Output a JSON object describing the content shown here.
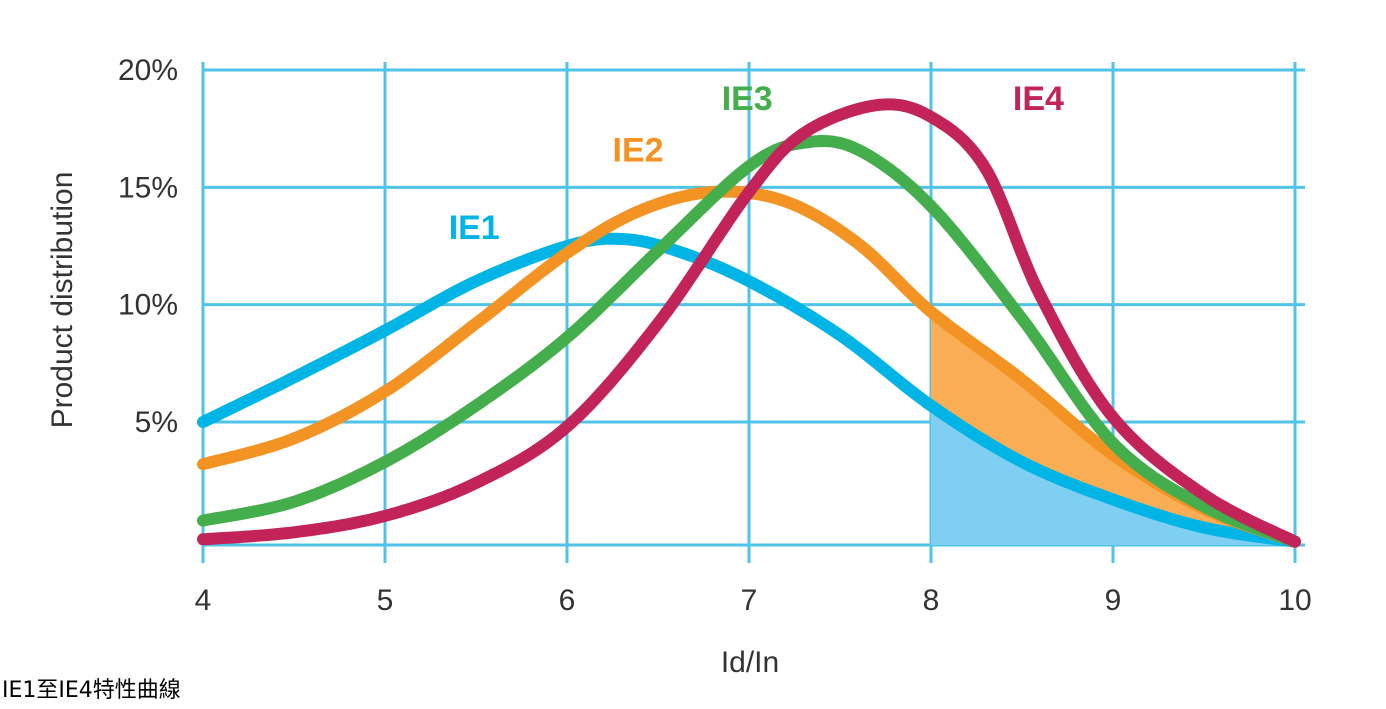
{
  "caption": "IE1至IE4特性曲線",
  "chart_data": {
    "type": "line",
    "xlabel": "Id/In",
    "ylabel": "Product distribution",
    "xlim": [
      4,
      10
    ],
    "ylim": [
      -0.5,
      20
    ],
    "x_ticks": [
      4,
      5,
      6,
      7,
      8,
      9,
      10
    ],
    "x_tick_labels": [
      "4",
      "5",
      "6",
      "7",
      "8",
      "9",
      "10"
    ],
    "y_ticks": [
      5,
      10,
      15,
      20
    ],
    "y_tick_labels": [
      "5%",
      "10%",
      "15%",
      "20%"
    ],
    "grid": true,
    "grid_color": "#4fc3ea",
    "shaded_region": {
      "x_from": 8,
      "x_to": 10,
      "colors": {
        "IE1": "#7fcff3",
        "IE2": "#f9ae55"
      }
    },
    "series": [
      {
        "name": "IE1",
        "color": "#00b4e6",
        "label_at": [
          5.35,
          12.8
        ],
        "points": [
          [
            4,
            5
          ],
          [
            4.5,
            6.9
          ],
          [
            5,
            8.9
          ],
          [
            5.5,
            11
          ],
          [
            6,
            12.5
          ],
          [
            6.3,
            12.8
          ],
          [
            6.6,
            12.3
          ],
          [
            7,
            11
          ],
          [
            7.5,
            8.7
          ],
          [
            8,
            5.7
          ],
          [
            8.5,
            3.3
          ],
          [
            9,
            1.7
          ],
          [
            9.5,
            0.5
          ],
          [
            10,
            -0.1
          ]
        ]
      },
      {
        "name": "IE2",
        "color": "#f39323",
        "label_at": [
          6.25,
          16.1
        ],
        "points": [
          [
            4,
            3.2
          ],
          [
            4.5,
            4.3
          ],
          [
            5,
            6.3
          ],
          [
            5.5,
            9.2
          ],
          [
            6,
            12.2
          ],
          [
            6.4,
            14
          ],
          [
            6.8,
            14.8
          ],
          [
            7.2,
            14.4
          ],
          [
            7.6,
            12.6
          ],
          [
            8,
            9.7
          ],
          [
            8.5,
            6.8
          ],
          [
            9,
            3.6
          ],
          [
            9.5,
            1.3
          ],
          [
            10,
            -0.1
          ]
        ]
      },
      {
        "name": "IE3",
        "color": "#44ad4c",
        "label_at": [
          6.85,
          18.3
        ],
        "points": [
          [
            4,
            0.8
          ],
          [
            4.5,
            1.6
          ],
          [
            5,
            3.3
          ],
          [
            5.5,
            5.7
          ],
          [
            6,
            8.6
          ],
          [
            6.5,
            12.3
          ],
          [
            7,
            15.9
          ],
          [
            7.3,
            16.9
          ],
          [
            7.6,
            16.6
          ],
          [
            8,
            14.2
          ],
          [
            8.5,
            9.4
          ],
          [
            9,
            4.1
          ],
          [
            9.5,
            1.4
          ],
          [
            10,
            -0.1
          ]
        ]
      },
      {
        "name": "IE4",
        "color": "#c2245a",
        "label_at": [
          8.45,
          18.3
        ],
        "points": [
          [
            4,
            0
          ],
          [
            4.5,
            0.3
          ],
          [
            5,
            1
          ],
          [
            5.5,
            2.4
          ],
          [
            6,
            4.8
          ],
          [
            6.5,
            9.2
          ],
          [
            7,
            14.8
          ],
          [
            7.3,
            17.3
          ],
          [
            7.7,
            18.5
          ],
          [
            8,
            18
          ],
          [
            8.3,
            15.8
          ],
          [
            8.6,
            10.4
          ],
          [
            9,
            5.2
          ],
          [
            9.5,
            1.9
          ],
          [
            10,
            -0.1
          ]
        ]
      }
    ]
  }
}
